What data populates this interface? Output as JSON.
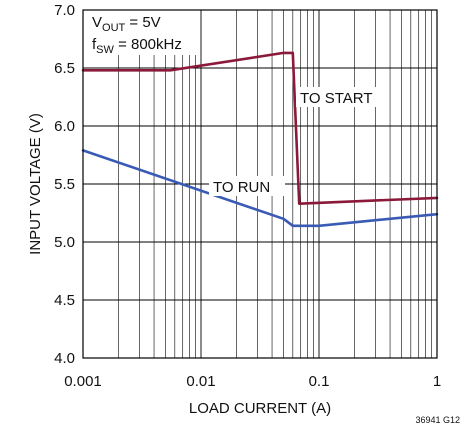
{
  "chart_data": {
    "type": "line",
    "x_scale": "log",
    "xlabel": "LOAD CURRENT (A)",
    "ylabel": "INPUT VOLTAGE (V)",
    "xlim": [
      0.001,
      1
    ],
    "ylim": [
      4.0,
      7.0
    ],
    "grid": true,
    "x_ticks": [
      0.001,
      0.01,
      0.1,
      1
    ],
    "x_tick_labels": [
      "0.001",
      "0.01",
      "0.1",
      "1"
    ],
    "y_ticks": [
      4.0,
      4.5,
      5.0,
      5.5,
      6.0,
      6.5,
      7.0
    ],
    "y_tick_labels": [
      "4.0",
      "4.5",
      "5.0",
      "5.5",
      "6.0",
      "6.5",
      "7.0"
    ],
    "conditions": {
      "vout": {
        "main": "V",
        "sub": "OUT",
        "rest": " = 5V"
      },
      "fsw": {
        "main": "f",
        "sub": "SW",
        "rest": " = 800kHz"
      }
    },
    "series": [
      {
        "name": "TO START",
        "color": "#8b1a3a",
        "x": [
          0.001,
          0.0055,
          0.05,
          0.06,
          0.068,
          1
        ],
        "y": [
          6.48,
          6.48,
          6.63,
          6.63,
          5.33,
          5.38
        ]
      },
      {
        "name": "TO RUN",
        "color": "#3a5bb5",
        "x": [
          0.001,
          0.05,
          0.06,
          0.1,
          1
        ],
        "y": [
          5.79,
          5.2,
          5.14,
          5.14,
          5.24
        ]
      }
    ],
    "figure_id": "36941 G12"
  }
}
